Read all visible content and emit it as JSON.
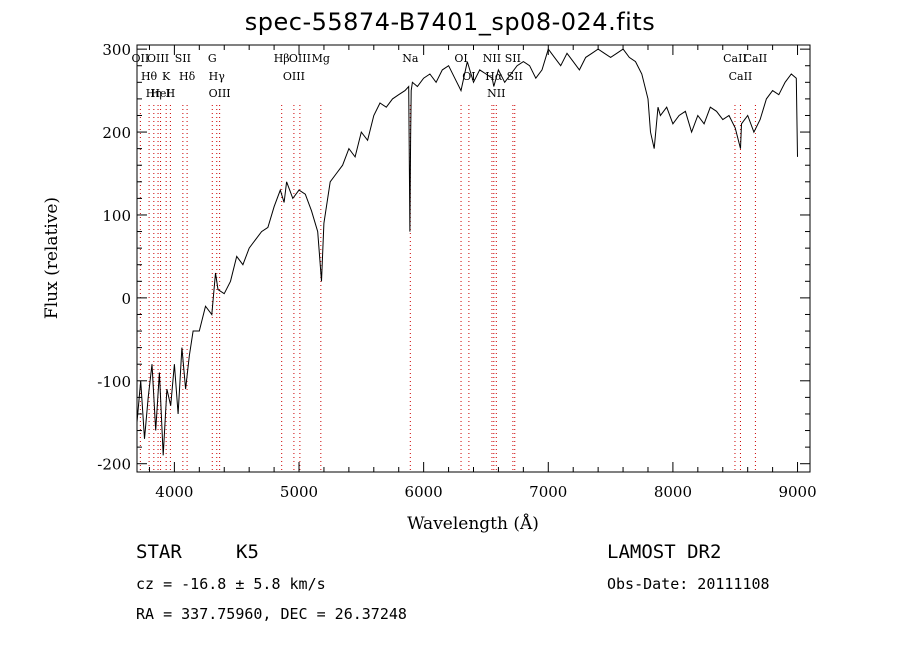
{
  "header": {
    "title": "spec-55874-B7401_sp08-024.fits"
  },
  "info": {
    "class_label": "STAR",
    "subclass_label": "K5",
    "survey": "LAMOST DR2",
    "cz": "cz = -16.8 ± 5.8 km/s",
    "obs_date": "Obs-Date: 20111108",
    "radec": "RA = 337.75960, DEC =  26.37248"
  },
  "chart_data": {
    "type": "line",
    "title": "spec-55874-B7401_sp08-024.fits",
    "xlabel": "Wavelength (Å)",
    "ylabel": "Flux (relative)",
    "xlim": [
      3700,
      9100
    ],
    "ylim": [
      -210,
      305
    ],
    "xticks": [
      4000,
      5000,
      6000,
      7000,
      8000,
      9000
    ],
    "yticks": [
      -200,
      -100,
      0,
      100,
      200,
      300
    ],
    "grid": false,
    "line_color": "#000000",
    "marker_color": "#cc0000",
    "series": [
      {
        "x": [
          3700,
          3730,
          3760,
          3790,
          3820,
          3850,
          3880,
          3910,
          3940,
          3970,
          4000,
          4030,
          4060,
          4090,
          4120,
          4150,
          4200,
          4250,
          4300,
          4330,
          4350,
          4400,
          4450,
          4500,
          4550,
          4600,
          4650,
          4700,
          4750,
          4800,
          4850,
          4880,
          4900,
          4950,
          5000,
          5050,
          5100,
          5150,
          5180,
          5200,
          5250,
          5300,
          5350,
          5400,
          5450,
          5500,
          5550,
          5600,
          5650,
          5700,
          5750,
          5800,
          5850,
          5880,
          5890,
          5895,
          5900,
          5910,
          5950,
          6000,
          6050,
          6100,
          6150,
          6200,
          6250,
          6300,
          6350,
          6400,
          6450,
          6500,
          6550,
          6563,
          6600,
          6650,
          6700,
          6750,
          6800,
          6850,
          6900,
          6950,
          7000,
          7050,
          7100,
          7150,
          7200,
          7250,
          7300,
          7350,
          7400,
          7450,
          7500,
          7550,
          7600,
          7650,
          7700,
          7750,
          7800,
          7820,
          7850,
          7880,
          7900,
          7950,
          8000,
          8050,
          8100,
          8150,
          8200,
          8250,
          8300,
          8350,
          8400,
          8450,
          8500,
          8542,
          8550,
          8600,
          8650,
          8700,
          8750,
          8800,
          8850,
          8900,
          8950,
          8990,
          9000
        ],
        "y": [
          -150,
          -100,
          -170,
          -120,
          -80,
          -160,
          -90,
          -190,
          -110,
          -130,
          -80,
          -140,
          -60,
          -110,
          -70,
          -40,
          -40,
          -10,
          -20,
          30,
          10,
          5,
          20,
          50,
          40,
          60,
          70,
          80,
          85,
          110,
          130,
          115,
          140,
          120,
          130,
          125,
          105,
          80,
          20,
          90,
          140,
          150,
          160,
          180,
          170,
          200,
          190,
          220,
          235,
          230,
          240,
          245,
          250,
          255,
          80,
          190,
          250,
          260,
          255,
          265,
          270,
          260,
          275,
          280,
          265,
          250,
          285,
          260,
          275,
          270,
          265,
          255,
          275,
          260,
          270,
          280,
          285,
          280,
          265,
          275,
          300,
          290,
          280,
          295,
          285,
          275,
          290,
          295,
          300,
          295,
          290,
          295,
          300,
          290,
          285,
          270,
          240,
          200,
          180,
          230,
          220,
          230,
          210,
          220,
          225,
          200,
          220,
          210,
          230,
          225,
          215,
          220,
          205,
          180,
          210,
          220,
          200,
          215,
          240,
          250,
          245,
          260,
          270,
          265,
          170
        ]
      }
    ],
    "lines": [
      {
        "name": "Hθ",
        "x": 3797
      },
      {
        "name": "K",
        "x": 3934
      },
      {
        "name": "OII",
        "x": 3727
      },
      {
        "name": "HeI",
        "x": 3889
      },
      {
        "name": "H",
        "x": 3968
      },
      {
        "name": "OIII",
        "x": 3869
      },
      {
        "name": "Hη",
        "x": 3835
      },
      {
        "name": "Hδ",
        "x": 4102
      },
      {
        "name": "SII",
        "x": 4068
      },
      {
        "name": "OIII",
        "x": 4363
      },
      {
        "name": "Hγ",
        "x": 4340
      },
      {
        "name": "G",
        "x": 4304
      },
      {
        "name": "OIII",
        "x": 5007
      },
      {
        "name": "OIII",
        "x": 4959
      },
      {
        "name": "Hβ",
        "x": 4861
      },
      {
        "name": "Mg",
        "x": 5175
      },
      {
        "name": "Na",
        "x": 5893
      },
      {
        "name": "OI",
        "x": 6300
      },
      {
        "name": "OI",
        "x": 6363
      },
      {
        "name": "Hα",
        "x": 6563
      },
      {
        "name": "SII",
        "x": 6716
      },
      {
        "name": "NII",
        "x": 6583
      },
      {
        "name": "NII",
        "x": 6548
      },
      {
        "name": "SII",
        "x": 6731
      },
      {
        "name": "CaII",
        "x": 8542
      },
      {
        "name": "CaII",
        "x": 8498
      },
      {
        "name": "CaII",
        "x": 8662
      }
    ]
  }
}
